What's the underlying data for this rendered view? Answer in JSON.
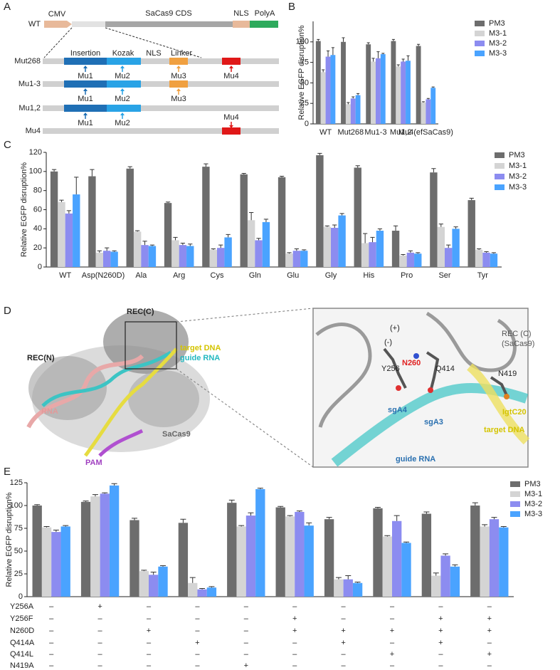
{
  "chart_data": [
    {
      "type": "bar",
      "panel": "B",
      "y_label": "Relative EGFP disruption%",
      "categories": [
        "WT",
        "Mut268",
        "Mu1-3",
        "Mu1,2",
        "Mu4(efSaCas9)"
      ],
      "series": [
        {
          "name": "PM3",
          "color": "#6d6d6d",
          "values": [
            101,
            100,
            97,
            101,
            95
          ],
          "errors": [
            2,
            5,
            2,
            2,
            2
          ]
        },
        {
          "name": "M3-1",
          "color": "#d4d4d4",
          "values": [
            63,
            24,
            76,
            70,
            26
          ],
          "errors": [
            3,
            2,
            4,
            2,
            1
          ]
        },
        {
          "name": "M3-2",
          "color": "#8c8cf0",
          "values": [
            82,
            31,
            80,
            76,
            30
          ],
          "errors": [
            7,
            2,
            8,
            3,
            1
          ]
        },
        {
          "name": "M3-3",
          "color": "#4aa3ff",
          "values": [
            84,
            35,
            85,
            77,
            44
          ],
          "errors": [
            9,
            2,
            1,
            6,
            1
          ]
        }
      ],
      "ylim": [
        0,
        125
      ],
      "yticks": [
        0,
        25,
        50,
        75,
        100
      ],
      "legend": "right"
    },
    {
      "type": "bar",
      "panel": "C",
      "y_label": "Relative EGFP disruption%",
      "categories": [
        "WT",
        "Asp(N260D)",
        "Ala",
        "Arg",
        "Cys",
        "Gln",
        "Glu",
        "Gly",
        "His",
        "Pro",
        "Ser",
        "Tyr"
      ],
      "series": [
        {
          "name": "PM3",
          "color": "#6d6d6d",
          "values": [
            100,
            95,
            103,
            67,
            105,
            97,
            94,
            117,
            104,
            38,
            99,
            70
          ],
          "errors": [
            2,
            7,
            2,
            1,
            3,
            1,
            1,
            2,
            2,
            5,
            4,
            2
          ]
        },
        {
          "name": "M3-1",
          "color": "#d4d4d4",
          "values": [
            68,
            15,
            37,
            28,
            18,
            49,
            14,
            42,
            25,
            12,
            42,
            18
          ],
          "errors": [
            2,
            2,
            1,
            3,
            1,
            8,
            1,
            1,
            10,
            1,
            3,
            1
          ]
        },
        {
          "name": "M3-2",
          "color": "#8c8cf0",
          "values": [
            56,
            17,
            23,
            23,
            20,
            28,
            17,
            41,
            26,
            15,
            20,
            15
          ],
          "errors": [
            3,
            3,
            4,
            2,
            3,
            2,
            2,
            3,
            5,
            2,
            3,
            1
          ]
        },
        {
          "name": "M3-3",
          "color": "#4aa3ff",
          "values": [
            76,
            16,
            22,
            22,
            31,
            47,
            17,
            54,
            38,
            14,
            40,
            14
          ],
          "errors": [
            18,
            1,
            1,
            2,
            3,
            3,
            1,
            2,
            2,
            1,
            2,
            1
          ]
        }
      ],
      "ylim": [
        0,
        120
      ],
      "yticks": [
        0,
        20,
        40,
        60,
        80,
        100,
        120
      ],
      "legend": "right"
    },
    {
      "type": "bar",
      "panel": "E",
      "y_label": "Relative EGFP disruption%",
      "categories": [
        null,
        null,
        null,
        null,
        null,
        null,
        null,
        null,
        null,
        null
      ],
      "series": [
        {
          "name": "PM3",
          "color": "#6d6d6d",
          "values": [
            100,
            104,
            84,
            81,
            103,
            98,
            85,
            97,
            91,
            100
          ],
          "errors": [
            1,
            1,
            2,
            4,
            3,
            1,
            2,
            1,
            2,
            3
          ]
        },
        {
          "name": "M3-1",
          "color": "#d4d4d4",
          "values": [
            76,
            110,
            28,
            15,
            77,
            88,
            19,
            66,
            23,
            77
          ],
          "errors": [
            1,
            2,
            1,
            6,
            1,
            1,
            2,
            1,
            3,
            2
          ]
        },
        {
          "name": "M3-2",
          "color": "#8c8cf0",
          "values": [
            71,
            113,
            24,
            8,
            89,
            93,
            19,
            83,
            45,
            85
          ],
          "errors": [
            2,
            1,
            3,
            1,
            3,
            1,
            4,
            6,
            2,
            2
          ]
        },
        {
          "name": "M3-3",
          "color": "#4aa3ff",
          "values": [
            77,
            122,
            33,
            10,
            118,
            78,
            15,
            59,
            33,
            76
          ],
          "errors": [
            1,
            2,
            1,
            1,
            1,
            3,
            1,
            1,
            2,
            1
          ]
        }
      ],
      "ylim": [
        0,
        125
      ],
      "yticks": [
        0,
        25,
        50,
        75,
        100,
        125
      ],
      "legend": "right"
    }
  ],
  "construct_diagram": {
    "panel": "A",
    "rows": [
      {
        "name": "WT",
        "labels": [
          "CMV",
          "SaCas9 CDS",
          "NLS",
          "PolyA"
        ]
      },
      {
        "name": "Mut268",
        "labels": [
          "Insertion",
          "Kozak",
          "NLS",
          "Linker"
        ],
        "sites": [
          "Mu1",
          "Mu2",
          "Mu3",
          "Mu4"
        ]
      },
      {
        "name": "Mu1-3",
        "sites": [
          "Mu1",
          "Mu2",
          "Mu3"
        ]
      },
      {
        "name": "Mu1,2",
        "sites": [
          "Mu1",
          "Mu2"
        ]
      },
      {
        "name": "Mu4",
        "sites": [
          "Mu4"
        ]
      }
    ]
  },
  "structure": {
    "panel": "D",
    "overview_labels": [
      "REC(C)",
      "REC(N)",
      "target DNA",
      "guide RNA",
      "RNA",
      "PAM",
      "SaCas9"
    ],
    "inset_labels": [
      "REC (C)",
      "(SaCas9)",
      "(+)",
      "(-)",
      "N260",
      "Y256",
      "Q414",
      "N419",
      "sgA4",
      "sgA3",
      "IgtC20",
      "target DNA",
      "guide RNA"
    ]
  },
  "mutation_table": {
    "rows": [
      {
        "name": "Y256A",
        "cells": [
          "–",
          "+",
          "–",
          "–",
          "–",
          "–",
          "–",
          "–",
          "–",
          "–"
        ]
      },
      {
        "name": "Y256F",
        "cells": [
          "–",
          "–",
          "–",
          "–",
          "–",
          "+",
          "–",
          "–",
          "+",
          "+"
        ]
      },
      {
        "name": "N260D",
        "cells": [
          "–",
          "–",
          "+",
          "–",
          "–",
          "+",
          "+",
          "+",
          "+",
          "+"
        ]
      },
      {
        "name": "Q414A",
        "cells": [
          "–",
          "–",
          "–",
          "+",
          "–",
          "–",
          "+",
          "–",
          "+",
          "–"
        ]
      },
      {
        "name": "Q414L",
        "cells": [
          "–",
          "–",
          "–",
          "–",
          "–",
          "–",
          "–",
          "+",
          "–",
          "+"
        ]
      },
      {
        "name": "N419A",
        "cells": [
          "–",
          "–",
          "–",
          "–",
          "+",
          "–",
          "–",
          "–",
          "–",
          "–"
        ]
      }
    ]
  }
}
